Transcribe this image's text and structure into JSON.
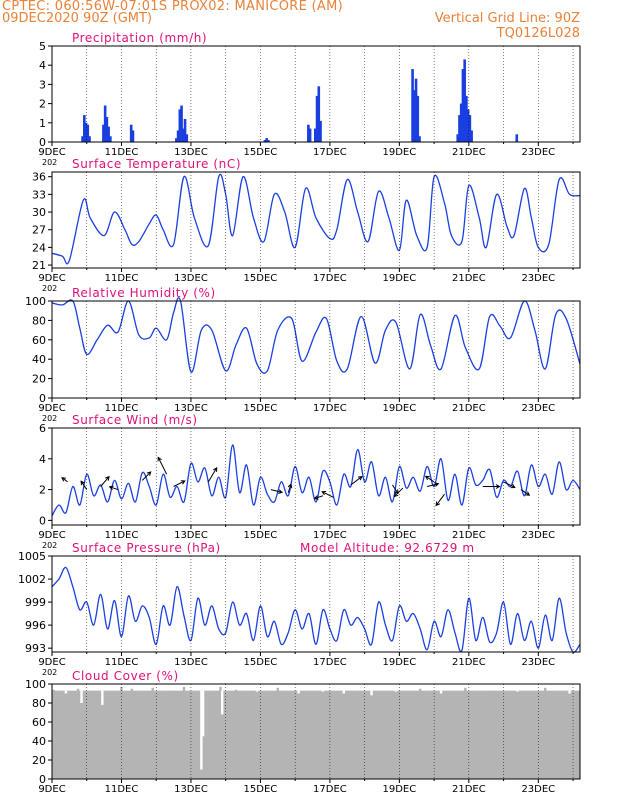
{
  "header": {
    "line1": "CPTEC:   060:56W-07:01S   PROX02: MANICORE (AM)",
    "line2": "09DEC2020 90Z (GMT)",
    "grid_note": "Vertical Grid Line: 90Z",
    "code": "TQ0126L028"
  },
  "colors": {
    "header": "#e8823a",
    "title": "#e0107a",
    "line": "#1a3fe0",
    "bar": "#1a3fe0",
    "cloud": "#b4b4b4",
    "arrow": "#000000"
  },
  "x_ticks": [
    "9DEC",
    "11DEC",
    "13DEC",
    "15DEC",
    "17DEC",
    "19DEC",
    "21DEC",
    "23DEC"
  ],
  "year_fragment": "202",
  "chart_data": [
    {
      "id": "precip",
      "type": "bar",
      "title": "Precipitation (mm/h)",
      "ylim": [
        0,
        5
      ],
      "yticks": [
        0,
        1,
        2,
        3,
        4,
        5
      ],
      "x_unit": "days since 9DEC",
      "x": [
        0.88,
        0.93,
        0.98,
        1.03,
        1.08,
        1.48,
        1.53,
        1.58,
        1.63,
        1.68,
        2.28,
        2.33,
        3.58,
        3.63,
        3.68,
        3.73,
        3.78,
        3.83,
        3.88,
        6.13,
        6.18,
        6.23,
        7.38,
        7.43,
        7.58,
        7.63,
        7.68,
        7.73,
        10.38,
        10.43,
        10.48,
        10.53,
        10.58,
        11.68,
        11.73,
        11.78,
        11.83,
        11.88,
        11.93,
        11.98,
        12.03,
        12.08,
        13.38
      ],
      "values": [
        0.3,
        1.4,
        1.0,
        0.9,
        0.3,
        0.9,
        1.9,
        1.3,
        0.8,
        0.3,
        0.9,
        0.6,
        0.2,
        0.6,
        1.7,
        1.9,
        0.7,
        1.2,
        0.4,
        0.1,
        0.2,
        0.1,
        0.9,
        0.7,
        0.7,
        2.4,
        2.9,
        1.1,
        3.8,
        2.7,
        3.3,
        2.4,
        0.3,
        0.4,
        1.4,
        2.0,
        3.8,
        4.3,
        2.4,
        1.7,
        1.4,
        0.6,
        0.4
      ]
    },
    {
      "id": "temp",
      "type": "line",
      "title": "Surface Temperature (nC)",
      "ylim": [
        20.5,
        36.8
      ],
      "yticks": [
        21,
        24,
        27,
        30,
        33,
        36
      ],
      "x_unit": "days since 9DEC",
      "x": [
        0,
        0.3,
        0.5,
        0.9,
        1.1,
        1.5,
        1.8,
        2.1,
        2.3,
        2.5,
        2.8,
        3.0,
        3.2,
        3.5,
        3.8,
        4.1,
        4.5,
        4.8,
        5.0,
        5.2,
        5.5,
        5.8,
        6.1,
        6.4,
        6.7,
        7.0,
        7.3,
        7.6,
        8.0,
        8.2,
        8.5,
        8.8,
        9.1,
        9.4,
        9.7,
        10.0,
        10.2,
        10.5,
        10.8,
        11.0,
        11.3,
        11.5,
        11.8,
        12.0,
        12.3,
        12.5,
        12.8,
        13.1,
        13.3,
        13.6,
        13.8,
        14.0,
        14.3,
        14.6,
        14.9,
        15.2
      ],
      "values": [
        23,
        22.5,
        21.8,
        32,
        29,
        26,
        30,
        27,
        24.5,
        25,
        28,
        29.5,
        27,
        24.5,
        36,
        29,
        24.3,
        36,
        33,
        26,
        36,
        29,
        25,
        33,
        30,
        24,
        34,
        29,
        25.5,
        27,
        35.5,
        30,
        25,
        33.5,
        29,
        23.5,
        32,
        26,
        24,
        36,
        31.5,
        26,
        25,
        34.5,
        29,
        24,
        33,
        27.5,
        26,
        34,
        29,
        24,
        24.5,
        35.5,
        33,
        32.8
      ],
      "ylabel": ""
    },
    {
      "id": "rh",
      "type": "line",
      "title": "Relative Humidity (%)",
      "ylim": [
        0,
        100
      ],
      "yticks": [
        0,
        20,
        40,
        60,
        80,
        100
      ],
      "x_unit": "days since 9DEC",
      "x": [
        0,
        0.3,
        0.6,
        0.8,
        1.0,
        1.3,
        1.6,
        1.9,
        2.2,
        2.5,
        2.8,
        3.0,
        3.3,
        3.5,
        3.7,
        4.0,
        4.3,
        4.6,
        5.0,
        5.3,
        5.6,
        5.9,
        6.2,
        6.5,
        6.9,
        7.2,
        7.6,
        7.9,
        8.2,
        8.5,
        8.9,
        9.3,
        9.6,
        9.9,
        10.3,
        10.6,
        10.9,
        11.2,
        11.6,
        11.9,
        12.3,
        12.6,
        12.9,
        13.2,
        13.6,
        13.9,
        14.2,
        14.5,
        14.8,
        15.2
      ],
      "values": [
        98,
        96,
        100,
        72,
        45,
        60,
        75,
        68,
        100,
        65,
        62,
        72,
        60,
        88,
        100,
        27,
        70,
        70,
        28,
        55,
        72,
        35,
        28,
        70,
        82,
        38,
        68,
        82,
        38,
        30,
        84,
        36,
        70,
        78,
        30,
        86,
        54,
        30,
        85,
        52,
        30,
        84,
        74,
        62,
        100,
        70,
        30,
        86,
        82,
        35
      ],
      "ylabel": ""
    },
    {
      "id": "wind",
      "type": "line",
      "title": "Surface Wind (m/s)",
      "ylim": [
        -0.3,
        6
      ],
      "yticks": [
        0,
        2,
        4,
        6
      ],
      "x_unit": "days since 9DEC",
      "x": [
        0,
        0.2,
        0.4,
        0.6,
        0.8,
        1.0,
        1.2,
        1.4,
        1.6,
        1.8,
        2.0,
        2.2,
        2.4,
        2.6,
        2.8,
        3.0,
        3.2,
        3.4,
        3.6,
        3.8,
        4.0,
        4.2,
        4.4,
        4.6,
        4.8,
        5.0,
        5.2,
        5.4,
        5.6,
        5.8,
        6.0,
        6.2,
        6.4,
        6.6,
        6.8,
        7.0,
        7.2,
        7.4,
        7.6,
        7.8,
        8.0,
        8.2,
        8.4,
        8.6,
        8.8,
        9.0,
        9.2,
        9.4,
        9.6,
        9.8,
        10.0,
        10.2,
        10.4,
        10.6,
        10.8,
        11.0,
        11.2,
        11.4,
        11.6,
        11.8,
        12.0,
        12.2,
        12.4,
        12.6,
        12.8,
        13.0,
        13.2,
        13.4,
        13.6,
        13.8,
        14.0,
        14.2,
        14.4,
        14.6,
        14.8,
        15.0,
        15.2
      ],
      "values": [
        0.3,
        1.0,
        0.5,
        2.2,
        1.0,
        3.0,
        1.6,
        2.3,
        1.2,
        2.6,
        1.4,
        2.4,
        1.2,
        3.1,
        2.2,
        1.0,
        3.0,
        1.5,
        2.2,
        1.2,
        3.7,
        2.5,
        3.4,
        1.6,
        2.8,
        1.5,
        4.9,
        1.8,
        3.6,
        1.0,
        2.8,
        1.7,
        1.2,
        2.5,
        1.6,
        3.5,
        1.8,
        2.8,
        1.2,
        3.2,
        2.5,
        1.0,
        3.0,
        2.2,
        4.6,
        2.5,
        3.8,
        1.6,
        2.8,
        1.2,
        3.5,
        2.1,
        2.8,
        1.9,
        3.5,
        2.2,
        4.0,
        1.3,
        3.0,
        1.0,
        3.4,
        2.3,
        2.6,
        3.3,
        1.5,
        2.6,
        2.2,
        3.2,
        1.6,
        3.6,
        2.2,
        3.0,
        1.7,
        3.8,
        2.0,
        2.6,
        2.0
      ],
      "ylabel": "",
      "arrows": [
        {
          "x": 0.45,
          "y": 2.5,
          "u": -0.2,
          "v": 0.15
        },
        {
          "x": 1.0,
          "y": 2.0,
          "u": -0.2,
          "v": 0.3
        },
        {
          "x": 1.4,
          "y": 2.2,
          "u": 0.3,
          "v": 0.35
        },
        {
          "x": 1.9,
          "y": 2.0,
          "u": -0.3,
          "v": 0.1
        },
        {
          "x": 2.6,
          "y": 2.6,
          "u": 0.3,
          "v": 0.3
        },
        {
          "x": 3.3,
          "y": 3.0,
          "u": -0.3,
          "v": 0.6
        },
        {
          "x": 3.5,
          "y": 2.2,
          "u": 0.4,
          "v": 0.2
        },
        {
          "x": 4.5,
          "y": 2.5,
          "u": 0.3,
          "v": 0.5
        },
        {
          "x": 6.3,
          "y": 2.0,
          "u": 0.4,
          "v": -0.1
        },
        {
          "x": 6.8,
          "y": 1.8,
          "u": 0.1,
          "v": 0.3
        },
        {
          "x": 7.8,
          "y": 1.6,
          "u": -0.3,
          "v": -0.1
        },
        {
          "x": 8.1,
          "y": 1.5,
          "u": -0.4,
          "v": 0.2
        },
        {
          "x": 8.6,
          "y": 2.3,
          "u": 0.4,
          "v": 0.3
        },
        {
          "x": 9.8,
          "y": 2.3,
          "u": 0.2,
          "v": -0.3
        },
        {
          "x": 10.1,
          "y": 2.1,
          "u": -0.3,
          "v": -0.3
        },
        {
          "x": 10.8,
          "y": 2.2,
          "u": 0.4,
          "v": 0.1
        },
        {
          "x": 11.0,
          "y": 2.5,
          "u": -0.3,
          "v": 0.2
        },
        {
          "x": 11.3,
          "y": 1.7,
          "u": -0.3,
          "v": -0.4
        },
        {
          "x": 12.4,
          "y": 2.2,
          "u": 0.6,
          "v": 0.0
        },
        {
          "x": 13.0,
          "y": 2.5,
          "u": 0.4,
          "v": -0.2
        },
        {
          "x": 13.5,
          "y": 2.0,
          "u": 0.3,
          "v": -0.2
        }
      ]
    },
    {
      "id": "pressure",
      "type": "line",
      "title": "Surface Pressure (hPa)",
      "annotation": "Model Altitude: 92.6729 m",
      "ylim": [
        992.5,
        1005
      ],
      "yticks": [
        993,
        996,
        999,
        1002,
        1005
      ],
      "x_unit": "days since 9DEC",
      "x": [
        0,
        0.2,
        0.4,
        0.6,
        0.8,
        1.0,
        1.2,
        1.4,
        1.6,
        1.8,
        2.0,
        2.2,
        2.4,
        2.6,
        2.8,
        3.0,
        3.2,
        3.4,
        3.6,
        3.8,
        4.0,
        4.2,
        4.4,
        4.6,
        4.8,
        5.0,
        5.2,
        5.4,
        5.6,
        5.8,
        6.0,
        6.2,
        6.4,
        6.6,
        6.8,
        7.0,
        7.2,
        7.4,
        7.6,
        7.8,
        8.0,
        8.2,
        8.4,
        8.6,
        8.8,
        9.0,
        9.2,
        9.4,
        9.6,
        9.8,
        10.0,
        10.2,
        10.4,
        10.6,
        10.8,
        11.0,
        11.2,
        11.4,
        11.6,
        11.8,
        12.0,
        12.2,
        12.4,
        12.6,
        12.8,
        13.0,
        13.2,
        13.4,
        13.6,
        13.8,
        14.0,
        14.2,
        14.4,
        14.6,
        14.8,
        15.0,
        15.2
      ],
      "values": [
        1001,
        1002,
        1003.5,
        1001,
        998,
        999,
        996,
        1000,
        995.5,
        999.2,
        994.5,
        999.8,
        996.5,
        998.5,
        997,
        993.5,
        998.5,
        996,
        1001,
        997.2,
        994,
        999.5,
        996,
        998.5,
        995.5,
        995,
        999,
        996,
        997.5,
        994,
        998.5,
        994.5,
        996.5,
        993.5,
        995,
        998,
        995.5,
        997.5,
        993.5,
        998,
        995.5,
        994,
        998,
        996,
        997,
        995.5,
        993.5,
        999,
        996,
        994,
        998.5,
        996.5,
        997.5,
        995.5,
        992.8,
        996.5,
        994.5,
        998,
        995,
        992.7,
        999.5,
        994,
        997,
        993.8,
        995,
        999,
        993.5,
        997.5,
        994,
        996.5,
        993,
        997.3,
        994,
        999.5,
        995,
        992.5,
        993.5
      ],
      "ylabel": ""
    },
    {
      "id": "cloud",
      "type": "bar",
      "title": "Cloud Cover (%)",
      "ylim": [
        0,
        100
      ],
      "yticks": [
        0,
        20,
        40,
        60,
        80,
        100
      ],
      "x_unit": "days since 9DEC",
      "x": [
        0.05,
        0.4,
        0.75,
        0.85,
        1.2,
        1.45,
        2.0,
        2.3,
        2.9,
        3.4,
        3.8,
        4.3,
        4.35,
        4.85,
        4.9,
        5.3,
        5.9,
        6.5,
        7.1,
        7.8,
        8.4,
        9.2,
        9.9,
        10.6,
        11.2,
        11.9,
        12.6,
        13.4,
        14.2,
        14.9
      ],
      "values": [
        94,
        90,
        95,
        80,
        93,
        78,
        97,
        95,
        96,
        93,
        97,
        10,
        45,
        97,
        68,
        94,
        92,
        96,
        90,
        92,
        90,
        88,
        92,
        95,
        90,
        96,
        93,
        92,
        96,
        90
      ],
      "ylabel": "",
      "baseline_fill": 93
    }
  ]
}
